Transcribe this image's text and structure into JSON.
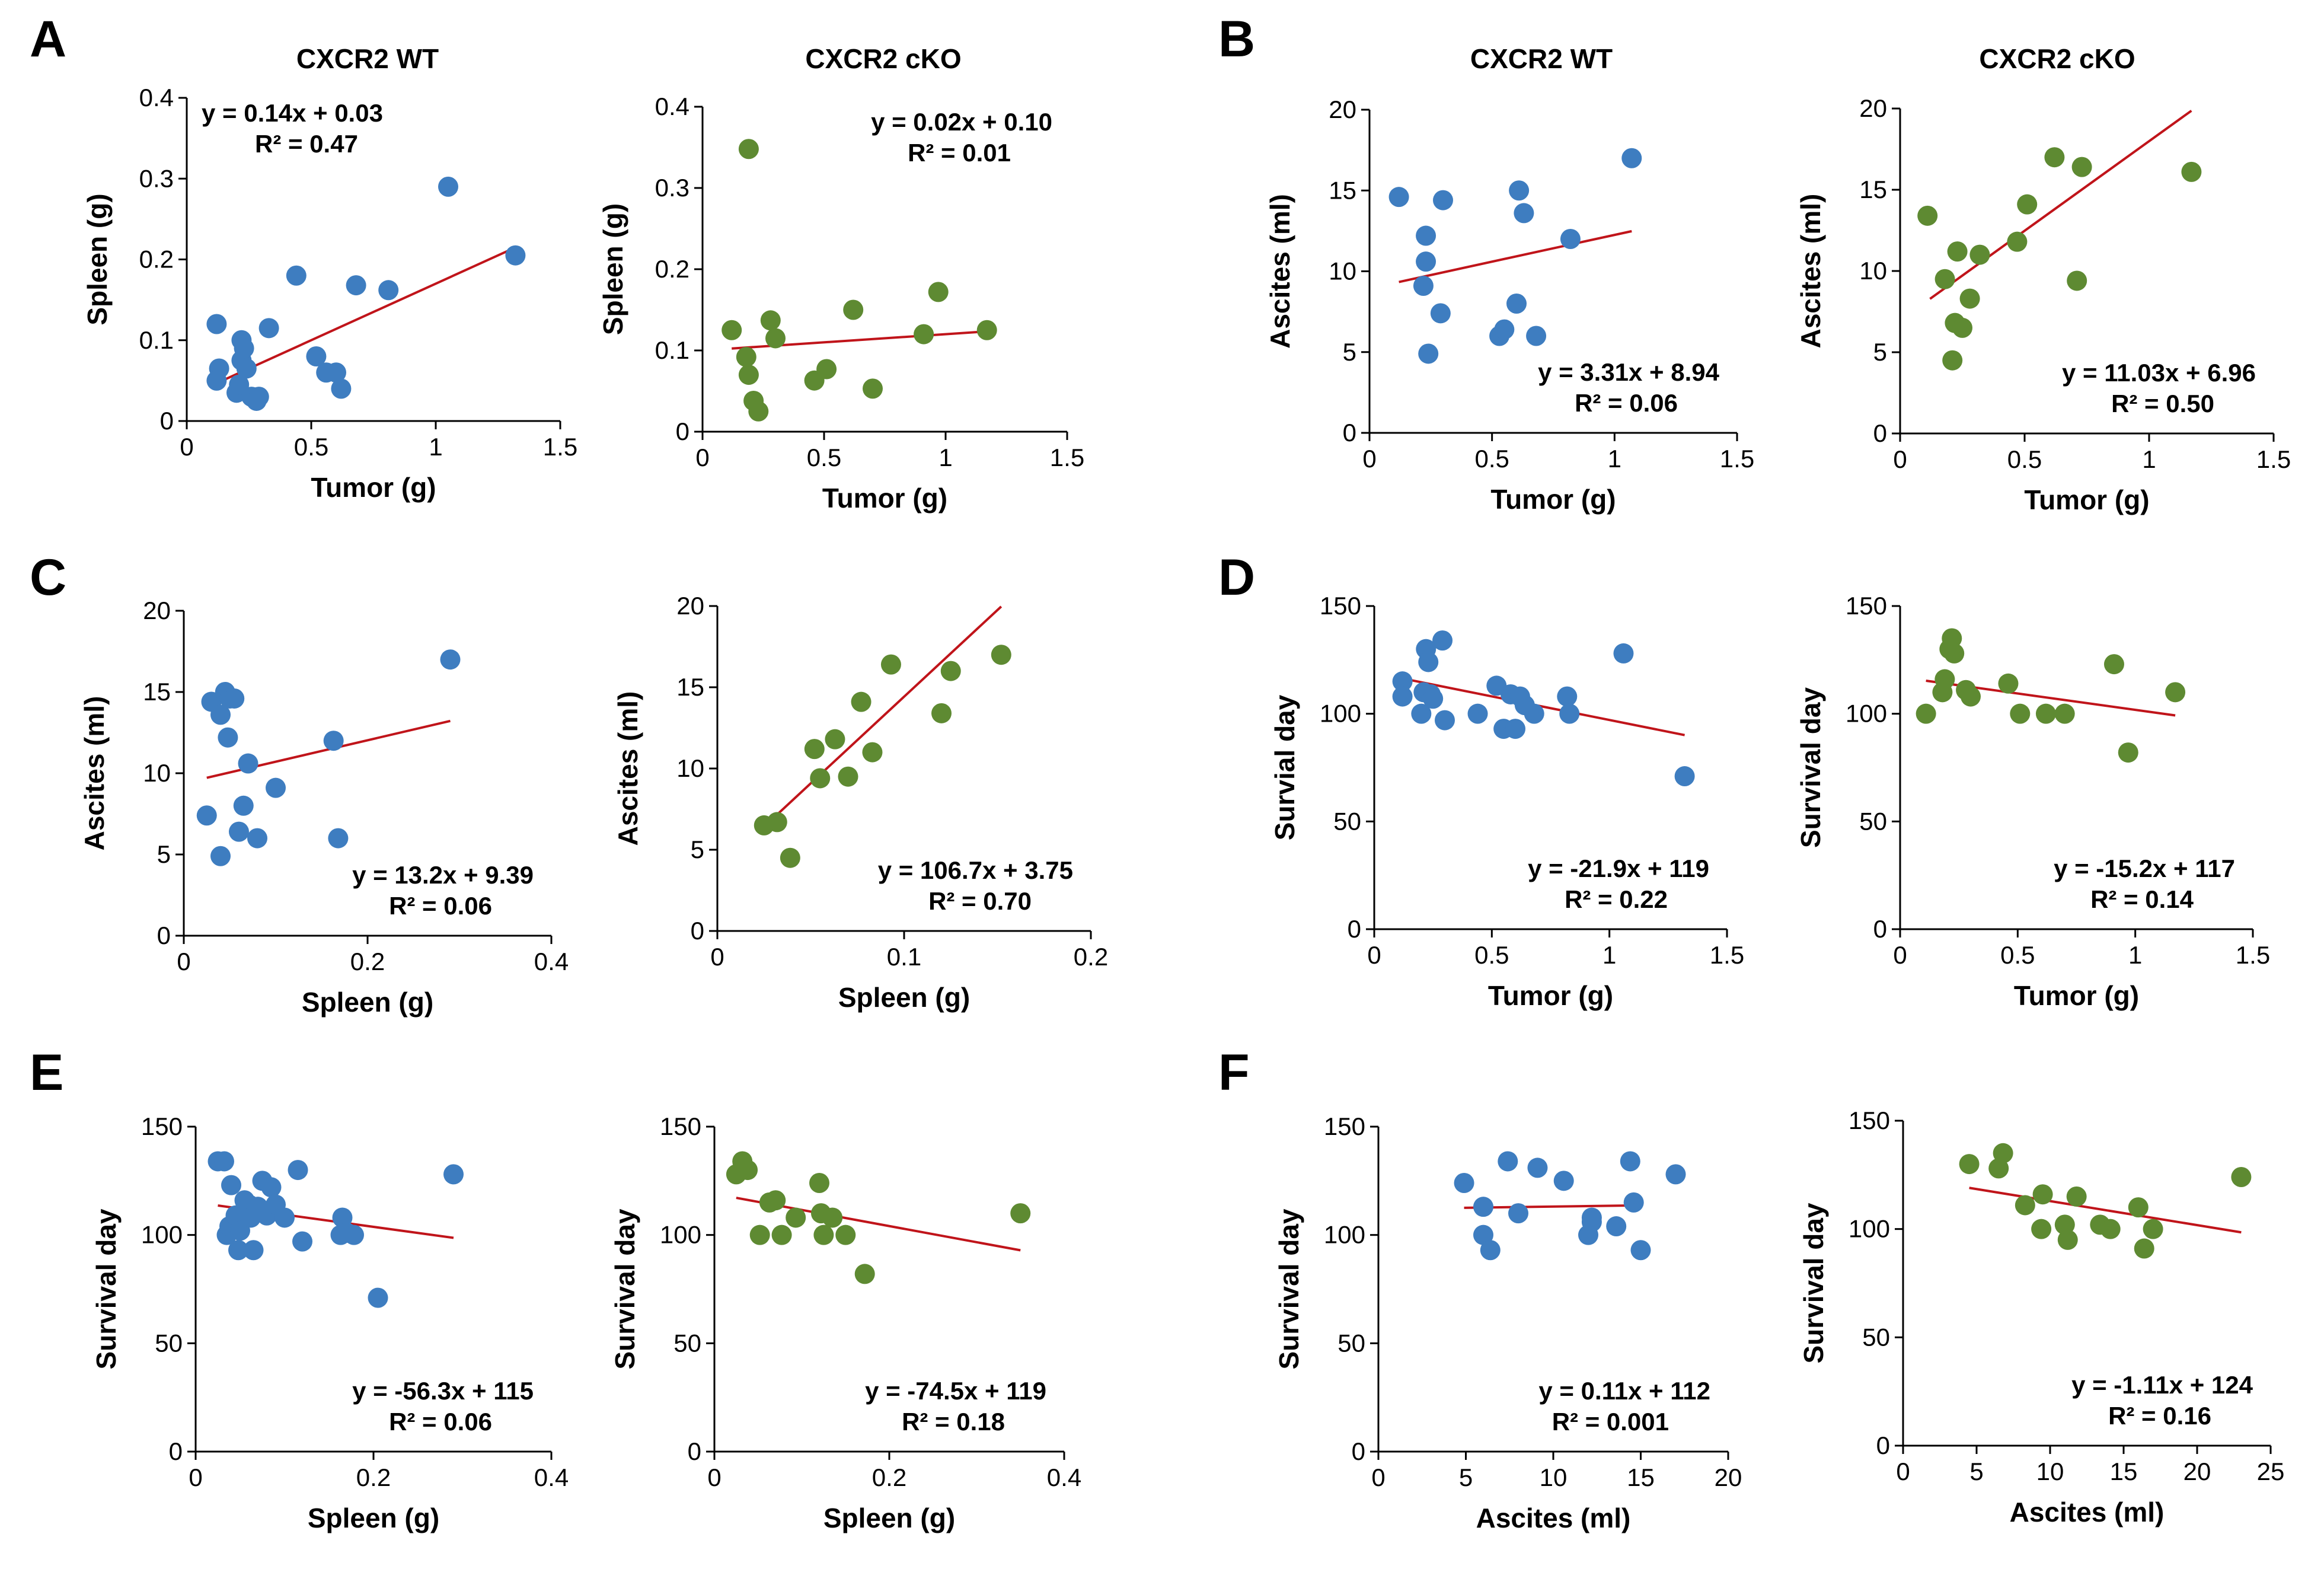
{
  "colors": {
    "wt": "#3E7DC0",
    "cko": "#5E8A32",
    "fit": "#C0141A",
    "axis": "#000000"
  },
  "panels": [
    {
      "label": "A",
      "titles": [
        "CXCR2 WT",
        "CXCR2 cKO"
      ]
    },
    {
      "label": "B",
      "titles": [
        "CXCR2 WT",
        "CXCR2 cKO"
      ]
    },
    {
      "label": "C",
      "titles": []
    },
    {
      "label": "D",
      "titles": []
    },
    {
      "label": "E",
      "titles": []
    },
    {
      "label": "F",
      "titles": []
    }
  ],
  "chart_data": [
    {
      "type": "scatter",
      "panel": "A",
      "group": "CXCR2 WT",
      "xlabel": "Tumor (g)",
      "ylabel": "Spleen (g)",
      "xlim": [
        0,
        1.5
      ],
      "ylim": [
        0,
        0.4
      ],
      "xticks": [
        "0",
        "0.5",
        "1",
        "1.5"
      ],
      "yticks": [
        "0",
        "0.1",
        "0.2",
        "0.3",
        "0.4"
      ],
      "equation": "y = 0.14x + 0.03",
      "r2": "R² = 0.47",
      "fit": {
        "x": [
          0.12,
          1.32
        ],
        "slope": 0.14,
        "intercept": 0.03
      },
      "eqpos": "top-left",
      "x": [
        0.12,
        0.13,
        0.12,
        0.2,
        0.21,
        0.22,
        0.22,
        0.23,
        0.24,
        0.26,
        0.28,
        0.29,
        0.33,
        0.44,
        0.52,
        0.56,
        0.6,
        0.62,
        0.68,
        0.81,
        1.05,
        1.32
      ],
      "y": [
        0.12,
        0.065,
        0.05,
        0.035,
        0.045,
        0.1,
        0.075,
        0.09,
        0.065,
        0.03,
        0.025,
        0.03,
        0.115,
        0.18,
        0.08,
        0.06,
        0.06,
        0.04,
        0.168,
        0.162,
        0.29,
        0.205
      ]
    },
    {
      "type": "scatter",
      "panel": "A",
      "group": "CXCR2 cKO",
      "xlabel": "Tumor (g)",
      "ylabel": "Spleen (g)",
      "xlim": [
        0,
        1.5
      ],
      "ylim": [
        0,
        0.4
      ],
      "xticks": [
        "0",
        "0.5",
        "1",
        "1.5"
      ],
      "yticks": [
        "0",
        "0.1",
        "0.2",
        "0.3",
        "0.4"
      ],
      "equation": "y = 0.02x + 0.10",
      "r2": "R² = 0.01",
      "fit": {
        "x": [
          0.12,
          1.17
        ],
        "slope": 0.02,
        "intercept": 0.1
      },
      "eqpos": "top-right",
      "x": [
        0.12,
        0.18,
        0.19,
        0.19,
        0.21,
        0.23,
        0.28,
        0.3,
        0.46,
        0.51,
        0.62,
        0.7,
        0.91,
        0.97,
        1.17
      ],
      "y": [
        0.125,
        0.092,
        0.07,
        0.348,
        0.038,
        0.025,
        0.137,
        0.115,
        0.063,
        0.077,
        0.15,
        0.053,
        0.12,
        0.172,
        0.125
      ]
    },
    {
      "type": "scatter",
      "panel": "B",
      "group": "CXCR2 WT",
      "xlabel": "Tumor (g)",
      "ylabel": "Ascites (ml)",
      "xlim": [
        0,
        1.5
      ],
      "ylim": [
        0,
        20
      ],
      "xticks": [
        "0",
        "0.5",
        "1",
        "1.5"
      ],
      "yticks": [
        "0",
        "5",
        "10",
        "15",
        "20"
      ],
      "equation": "y = 3.31x + 8.94",
      "r2": "R² = 0.06",
      "fit": {
        "x": [
          0.12,
          1.07
        ],
        "slope": 3.31,
        "intercept": 8.94
      },
      "eqpos": "bottom-right",
      "x": [
        0.12,
        0.22,
        0.23,
        0.23,
        0.24,
        0.29,
        0.3,
        0.53,
        0.55,
        0.6,
        0.61,
        0.63,
        0.68,
        0.82,
        1.07
      ],
      "y": [
        14.6,
        9.1,
        10.6,
        12.2,
        4.9,
        7.4,
        14.4,
        6.0,
        6.4,
        8.0,
        15.0,
        13.6,
        6.0,
        12.0,
        17.0
      ]
    },
    {
      "type": "scatter",
      "panel": "B",
      "group": "CXCR2 cKO",
      "xlabel": "Tumor (g)",
      "ylabel": "Ascites (ml)",
      "xlim": [
        0,
        1.5
      ],
      "ylim": [
        0,
        20
      ],
      "xticks": [
        "0",
        "0.5",
        "1",
        "1.5"
      ],
      "yticks": [
        "0",
        "5",
        "10",
        "15",
        "20"
      ],
      "equation": "y = 11.03x + 6.96",
      "r2": "R² = 0.50",
      "fit": {
        "x": [
          0.12,
          1.17
        ],
        "slope": 11.03,
        "intercept": 6.96
      },
      "eqpos": "bottom-right",
      "x": [
        0.11,
        0.18,
        0.21,
        0.22,
        0.23,
        0.25,
        0.28,
        0.32,
        0.47,
        0.51,
        0.62,
        0.71,
        0.73,
        1.17
      ],
      "y": [
        13.4,
        9.5,
        4.5,
        6.8,
        11.2,
        6.5,
        8.3,
        11.0,
        11.8,
        14.1,
        17.0,
        9.4,
        16.4,
        16.1
      ]
    },
    {
      "type": "scatter",
      "panel": "C",
      "group": "CXCR2 WT",
      "xlabel": "Spleen (g)",
      "ylabel": "Ascites (ml)",
      "xlim": [
        0,
        0.4
      ],
      "ylim": [
        0,
        20
      ],
      "xticks": [
        "0",
        "0.2",
        "0.4"
      ],
      "yticks": [
        "0",
        "5",
        "10",
        "15",
        "20"
      ],
      "equation": "y = 13.2x + 9.39",
      "r2": "R² = 0.06",
      "fit": {
        "x": [
          0.025,
          0.29
        ],
        "slope": 13.2,
        "intercept": 9.39
      },
      "eqpos": "bottom-right",
      "x": [
        0.025,
        0.03,
        0.04,
        0.04,
        0.045,
        0.048,
        0.05,
        0.055,
        0.06,
        0.065,
        0.07,
        0.08,
        0.1,
        0.163,
        0.168,
        0.29
      ],
      "y": [
        7.4,
        14.4,
        4.9,
        13.6,
        15.0,
        12.2,
        14.6,
        14.6,
        6.4,
        8.0,
        10.6,
        6.0,
        9.1,
        12.0,
        6.0,
        17.0
      ]
    },
    {
      "type": "scatter",
      "panel": "C",
      "group": "CXCR2 cKO",
      "xlabel": "Spleen (g)",
      "ylabel": "Ascites (ml)",
      "xlim": [
        0,
        0.2
      ],
      "ylim": [
        0,
        20
      ],
      "xticks": [
        "0",
        "0.1",
        "0.2"
      ],
      "yticks": [
        "0",
        "5",
        "10",
        "15",
        "20"
      ],
      "equation": "y = 106.7x + 3.75",
      "r2": "R² = 0.70",
      "fit": {
        "x": [
          0.025,
          0.152
        ],
        "slope": 106.7,
        "intercept": 3.75
      },
      "eqpos": "bottom-right",
      "x": [
        0.025,
        0.032,
        0.039,
        0.052,
        0.055,
        0.063,
        0.07,
        0.077,
        0.083,
        0.093,
        0.12,
        0.125,
        0.152
      ],
      "y": [
        6.5,
        6.7,
        4.5,
        11.2,
        9.4,
        11.8,
        9.5,
        14.1,
        11.0,
        16.4,
        13.4,
        16.0,
        17.0
      ]
    },
    {
      "type": "scatter",
      "panel": "D",
      "group": "CXCR2 WT",
      "xlabel": "Tumor (g)",
      "ylabel": "Survial day",
      "xlim": [
        0,
        1.5
      ],
      "ylim": [
        0,
        150
      ],
      "xticks": [
        "0",
        "0.5",
        "1",
        "1.5"
      ],
      "yticks": [
        "0",
        "50",
        "100",
        "150"
      ],
      "equation": "y = -21.9x + 119",
      "r2": "R² = 0.22",
      "fit": {
        "x": [
          0.12,
          1.32
        ],
        "slope": -21.9,
        "intercept": 119
      },
      "eqpos": "bottom-right",
      "x": [
        0.12,
        0.12,
        0.2,
        0.21,
        0.22,
        0.23,
        0.24,
        0.25,
        0.29,
        0.3,
        0.44,
        0.52,
        0.55,
        0.58,
        0.6,
        0.62,
        0.64,
        0.68,
        0.82,
        0.83,
        1.06,
        1.32
      ],
      "y": [
        115,
        108,
        100,
        110,
        130,
        124,
        109,
        107,
        134,
        97,
        100,
        113,
        93,
        109,
        93,
        108,
        104,
        100,
        108,
        100,
        128,
        71
      ]
    },
    {
      "type": "scatter",
      "panel": "D",
      "group": "CXCR2 cKO",
      "xlabel": "Tumor (g)",
      "ylabel": "Survival day",
      "xlim": [
        0,
        1.5
      ],
      "ylim": [
        0,
        150
      ],
      "xticks": [
        "0",
        "0.5",
        "1",
        "1.5"
      ],
      "yticks": [
        "0",
        "50",
        "100",
        "150"
      ],
      "equation": "y = -15.2x + 117",
      "r2": "R² = 0.14",
      "fit": {
        "x": [
          0.11,
          1.17
        ],
        "slope": -15.2,
        "intercept": 117
      },
      "eqpos": "bottom-right",
      "x": [
        0.11,
        0.18,
        0.19,
        0.21,
        0.22,
        0.23,
        0.28,
        0.3,
        0.46,
        0.51,
        0.62,
        0.7,
        0.91,
        0.97,
        1.17
      ],
      "y": [
        100,
        110,
        116,
        130,
        135,
        128,
        111,
        108,
        114,
        100,
        100,
        100,
        123,
        82,
        110
      ]
    },
    {
      "type": "scatter",
      "panel": "E",
      "group": "CXCR2 WT",
      "xlabel": "Spleen (g)",
      "ylabel": "Survival day",
      "xlim": [
        0,
        0.4
      ],
      "ylim": [
        0,
        150
      ],
      "xticks": [
        "0",
        "0.2",
        "0.4"
      ],
      "yticks": [
        "0",
        "50",
        "100",
        "150"
      ],
      "equation": "y = -56.3x + 115",
      "r2": "R² = 0.06",
      "fit": {
        "x": [
          0.025,
          0.29
        ],
        "slope": -56.3,
        "intercept": 115
      },
      "eqpos": "bottom-right",
      "x": [
        0.025,
        0.032,
        0.035,
        0.038,
        0.04,
        0.045,
        0.048,
        0.05,
        0.055,
        0.06,
        0.062,
        0.065,
        0.07,
        0.075,
        0.08,
        0.085,
        0.09,
        0.1,
        0.115,
        0.12,
        0.163,
        0.165,
        0.17,
        0.178,
        0.205,
        0.29
      ],
      "y": [
        134,
        134,
        100,
        104,
        123,
        109,
        93,
        102,
        116,
        114,
        108,
        93,
        113,
        125,
        109,
        122,
        114,
        108,
        130,
        97,
        100,
        108,
        101,
        100,
        71,
        128
      ]
    },
    {
      "type": "scatter",
      "panel": "E",
      "group": "CXCR2 cKO",
      "xlabel": "Spleen (g)",
      "ylabel": "Survival day",
      "xlim": [
        0,
        0.4
      ],
      "ylim": [
        0,
        150
      ],
      "xticks": [
        "0",
        "0.2",
        "0.4"
      ],
      "yticks": [
        "0",
        "50",
        "100",
        "150"
      ],
      "equation": "y = -74.5x + 119",
      "r2": "R² = 0.18",
      "fit": {
        "x": [
          0.025,
          0.35
        ],
        "slope": -74.5,
        "intercept": 119
      },
      "eqpos": "bottom-right",
      "x": [
        0.025,
        0.032,
        0.038,
        0.052,
        0.063,
        0.07,
        0.077,
        0.093,
        0.12,
        0.122,
        0.125,
        0.135,
        0.15,
        0.172,
        0.35
      ],
      "y": [
        128,
        134,
        130,
        100,
        115,
        116,
        100,
        108,
        124,
        110,
        100,
        108,
        100,
        82,
        110
      ]
    },
    {
      "type": "scatter",
      "panel": "F",
      "group": "CXCR2 WT",
      "xlabel": "Ascites (ml)",
      "ylabel": "Survival day",
      "xlim": [
        0,
        20
      ],
      "ylim": [
        0,
        150
      ],
      "xticks": [
        "0",
        "5",
        "10",
        "15",
        "20"
      ],
      "yticks": [
        "0",
        "50",
        "100",
        "150"
      ],
      "equation": "y = 0.11x + 112",
      "r2": "R² = 0.001",
      "fit": {
        "x": [
          4.9,
          15.0
        ],
        "slope": 0.11,
        "intercept": 112
      },
      "eqpos": "bottom-right",
      "x": [
        4.9,
        6.0,
        6.0,
        6.4,
        7.4,
        8.0,
        9.1,
        10.6,
        12.0,
        12.2,
        12.2,
        13.6,
        14.4,
        14.6,
        15.0,
        17.0
      ],
      "y": [
        124,
        100,
        113,
        93,
        134,
        110,
        131,
        125,
        100,
        108,
        106,
        104,
        134,
        115,
        93,
        128
      ]
    },
    {
      "type": "scatter",
      "panel": "F",
      "group": "CXCR2 cKO",
      "xlabel": "Ascites (ml)",
      "ylabel": "Survival day",
      "xlim": [
        0,
        25
      ],
      "ylim": [
        0,
        150
      ],
      "xticks": [
        "0",
        "5",
        "10",
        "15",
        "20",
        "25"
      ],
      "yticks": [
        "0",
        "50",
        "100",
        "150"
      ],
      "equation": "y = -1.11x + 124",
      "r2": "R² = 0.16",
      "fit": {
        "x": [
          4.5,
          23.0
        ],
        "slope": -1.11,
        "intercept": 124
      },
      "eqpos": "bottom-right",
      "x": [
        4.5,
        6.5,
        6.8,
        8.3,
        9.4,
        9.5,
        11.0,
        11.2,
        11.8,
        13.4,
        14.1,
        16.0,
        16.4,
        17.0,
        23.0
      ],
      "y": [
        130,
        128,
        135,
        111,
        100,
        116,
        102,
        95,
        115,
        102,
        100,
        110,
        91,
        100,
        124
      ]
    }
  ]
}
